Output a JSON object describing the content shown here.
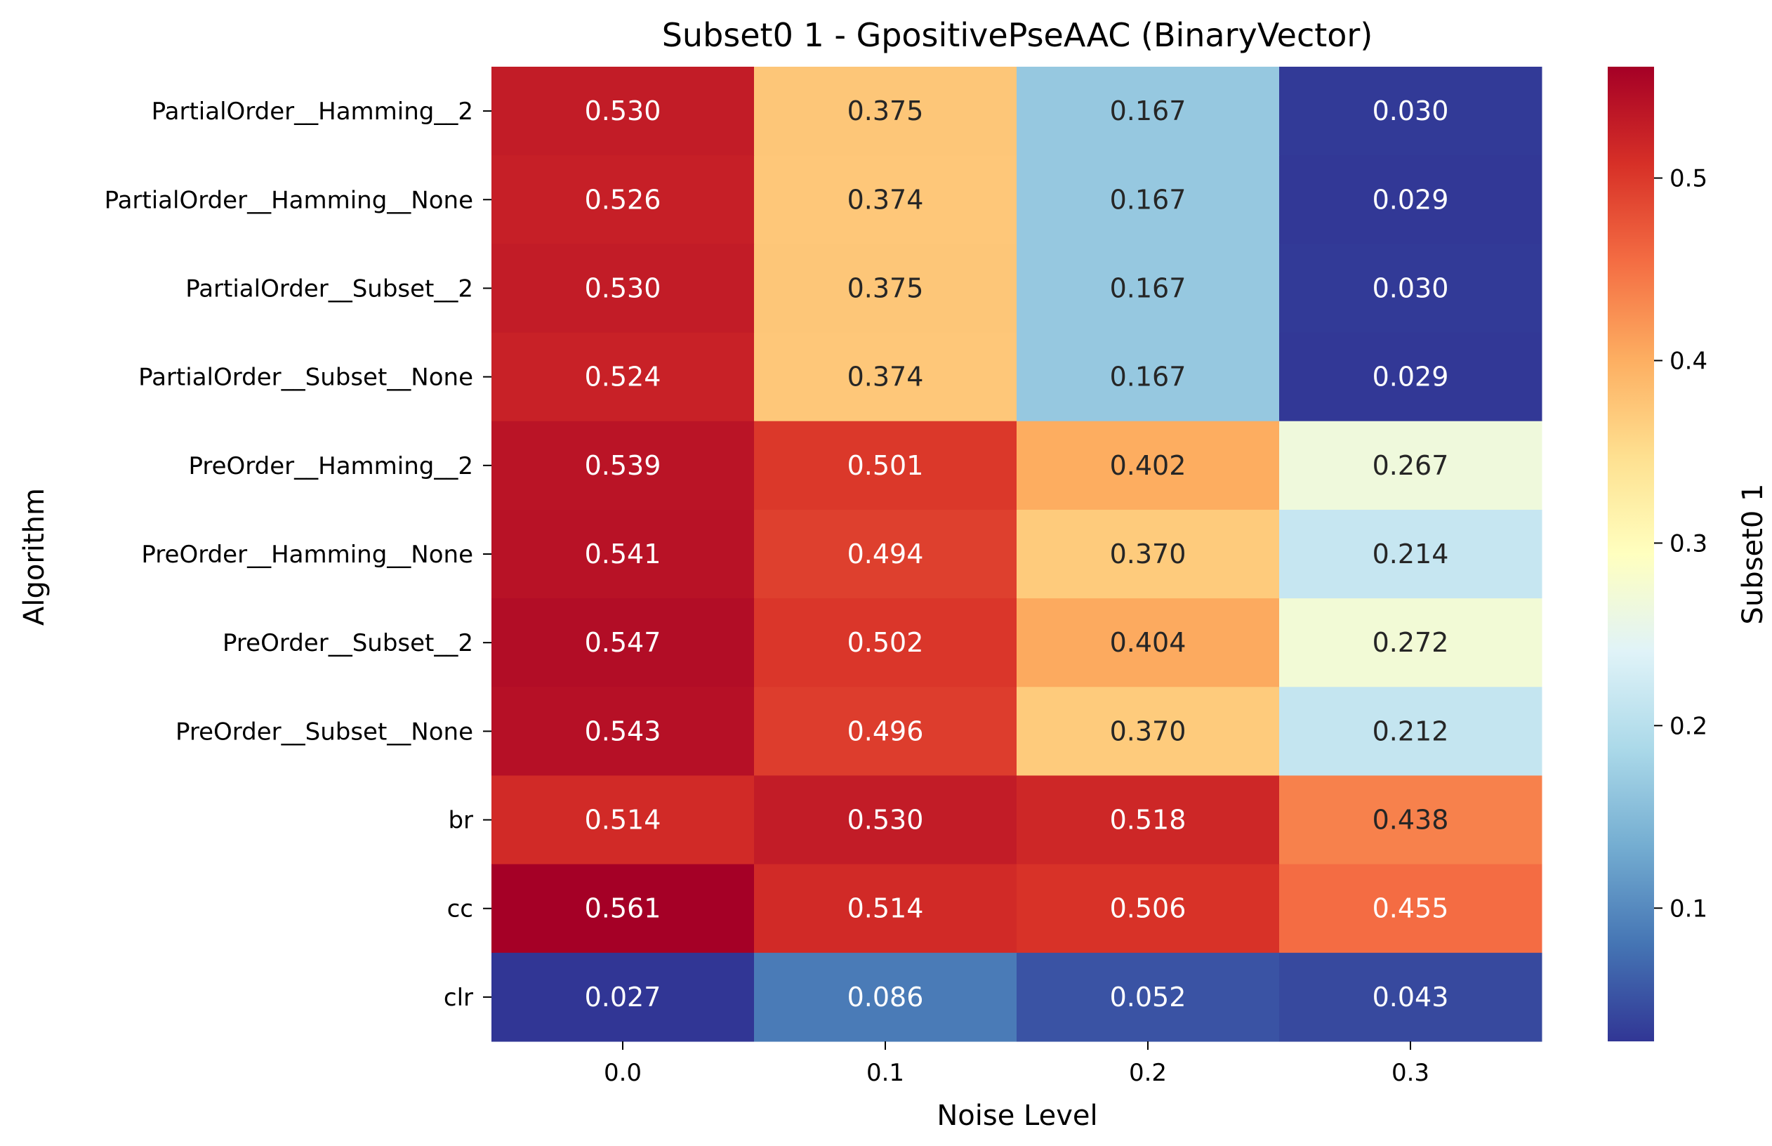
{
  "chart_data": {
    "type": "heatmap",
    "title": "Subset0 1 - GpositivePseAAC (BinaryVector)",
    "xlabel": "Noise Level",
    "ylabel": "Algorithm",
    "colorbar_label": "Subset0 1",
    "colormap": "RdYlBu_r",
    "vmin": 0.027,
    "vmax": 0.561,
    "colorbar_ticks": [
      "0.1",
      "0.2",
      "0.3",
      "0.4",
      "0.5"
    ],
    "x": [
      "0.0",
      "0.1",
      "0.2",
      "0.3"
    ],
    "y": [
      "PartialOrder__Hamming__2",
      "PartialOrder__Hamming__None",
      "PartialOrder__Subset__2",
      "PartialOrder__Subset__None",
      "PreOrder__Hamming__2",
      "PreOrder__Hamming__None",
      "PreOrder__Subset__2",
      "PreOrder__Subset__None",
      "br",
      "cc",
      "clr"
    ],
    "values": [
      [
        0.53,
        0.375,
        0.167,
        0.03
      ],
      [
        0.526,
        0.374,
        0.167,
        0.029
      ],
      [
        0.53,
        0.375,
        0.167,
        0.03
      ],
      [
        0.524,
        0.374,
        0.167,
        0.029
      ],
      [
        0.539,
        0.501,
        0.402,
        0.267
      ],
      [
        0.541,
        0.494,
        0.37,
        0.214
      ],
      [
        0.547,
        0.502,
        0.404,
        0.272
      ],
      [
        0.543,
        0.496,
        0.37,
        0.212
      ],
      [
        0.514,
        0.53,
        0.518,
        0.438
      ],
      [
        0.561,
        0.514,
        0.506,
        0.455
      ],
      [
        0.027,
        0.086,
        0.052,
        0.043
      ]
    ],
    "value_labels": [
      [
        "0.530",
        "0.375",
        "0.167",
        "0.030"
      ],
      [
        "0.526",
        "0.374",
        "0.167",
        "0.029"
      ],
      [
        "0.530",
        "0.375",
        "0.167",
        "0.030"
      ],
      [
        "0.524",
        "0.374",
        "0.167",
        "0.029"
      ],
      [
        "0.539",
        "0.501",
        "0.402",
        "0.267"
      ],
      [
        "0.541",
        "0.494",
        "0.370",
        "0.214"
      ],
      [
        "0.547",
        "0.502",
        "0.404",
        "0.272"
      ],
      [
        "0.543",
        "0.496",
        "0.370",
        "0.212"
      ],
      [
        "0.514",
        "0.530",
        "0.518",
        "0.438"
      ],
      [
        "0.561",
        "0.514",
        "0.506",
        "0.455"
      ],
      [
        "0.027",
        "0.086",
        "0.052",
        "0.043"
      ]
    ]
  }
}
